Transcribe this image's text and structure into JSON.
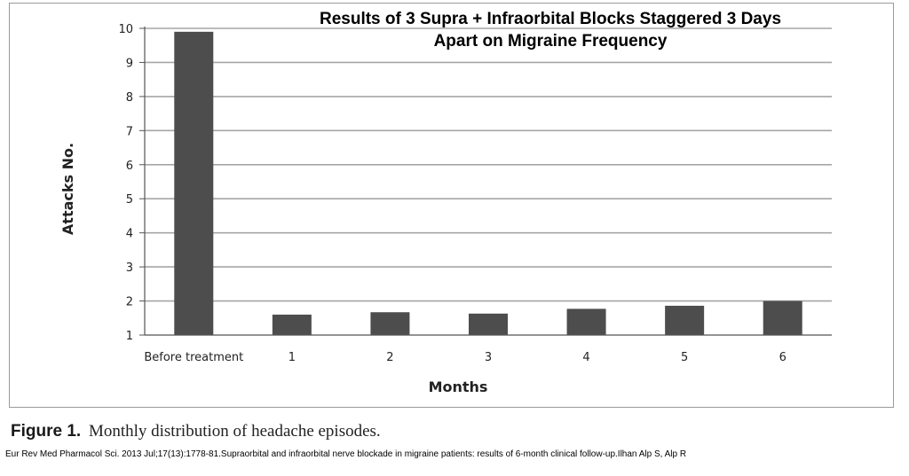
{
  "figure": {
    "label": "Figure 1.",
    "caption": "Monthly distribution of headache episodes.",
    "citation": "Eur Rev Med Pharmacol Sci. 2013 Jul;17(13):1778-81.Supraorbital and infraorbital nerve blockade in migraine patients: results of 6-month clinical follow-up.Ilhan Alp S, Alp R"
  },
  "chart_data": {
    "type": "bar",
    "title_lines": [
      "Results of 3 Supra + Infraorbital Blocks Staggered 3 Days",
      "Apart on Migraine Frequency"
    ],
    "categories": [
      "Before treatment",
      "1",
      "2",
      "3",
      "4",
      "5",
      "6"
    ],
    "values": [
      9.9,
      1.6,
      1.67,
      1.63,
      1.77,
      1.86,
      2.0
    ],
    "xlabel": "Months",
    "ylabel": "Attacks No.",
    "ylim": [
      1,
      10
    ],
    "yticks": [
      1,
      2,
      3,
      4,
      5,
      6,
      7,
      8,
      9,
      10
    ],
    "grid": true,
    "legend": "none",
    "bar_color": "#4d4d4d",
    "grid_color": "#a6a6a6"
  }
}
